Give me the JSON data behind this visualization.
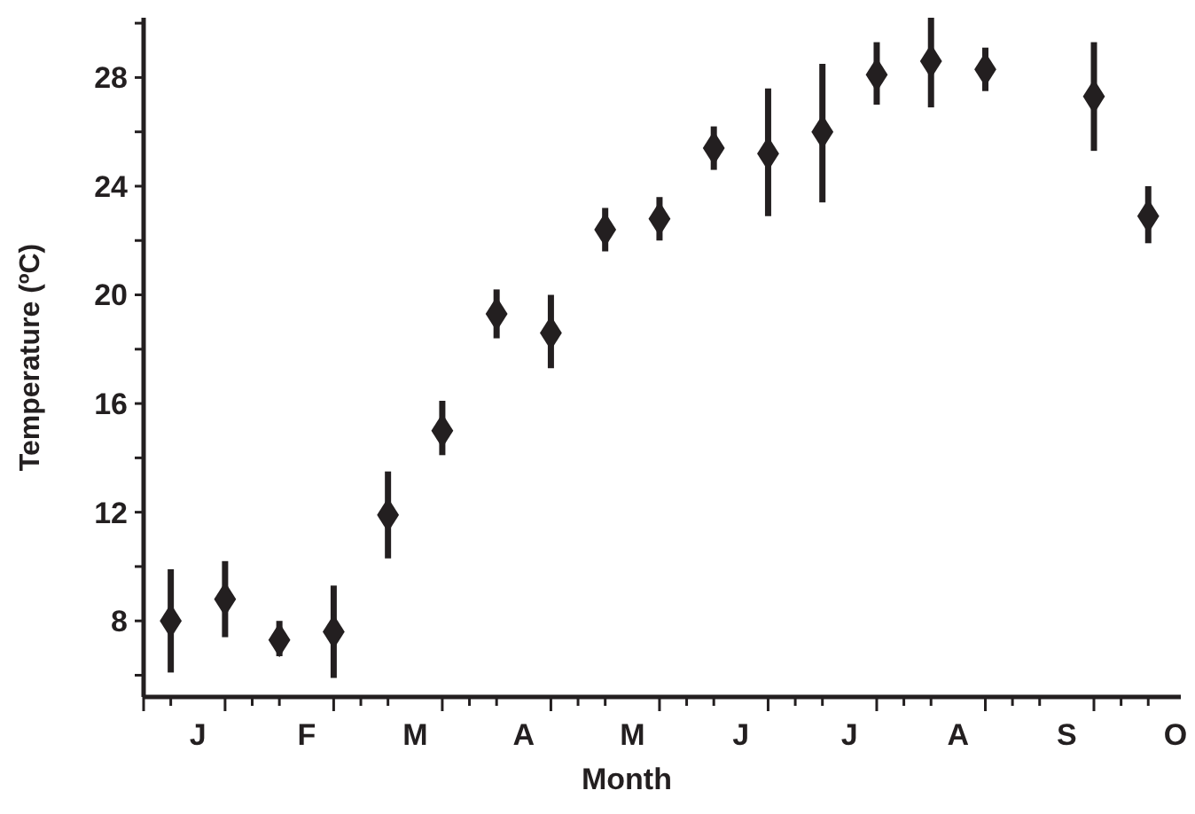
{
  "chart_data": {
    "type": "scatter",
    "xlabel": "Month",
    "ylabel": "Temperature (ºC)",
    "marker": "diamond",
    "categories": [
      null,
      "J",
      null,
      null,
      null,
      "F",
      null,
      null,
      null,
      "M",
      null,
      null,
      null,
      "A",
      null,
      null,
      null,
      "M",
      null,
      null,
      null,
      "J",
      null,
      null,
      null,
      "J",
      null,
      null,
      null,
      "A",
      null,
      null,
      null,
      "S",
      null,
      null,
      null,
      "O"
    ],
    "ylim": [
      5.2,
      30.2
    ],
    "yticks": [
      {
        "value": 6,
        "label": null
      },
      8,
      {
        "value": 10,
        "label": null
      },
      12,
      {
        "value": 14,
        "label": null
      },
      16,
      {
        "value": 18,
        "label": null
      },
      20,
      {
        "value": 22,
        "label": null
      },
      24,
      {
        "value": 26,
        "label": null
      },
      28,
      {
        "value": 30,
        "label": null
      }
    ],
    "series": [
      {
        "color": "#231f20",
        "values": [
          8.0,
          null,
          8.8,
          null,
          7.3,
          null,
          7.6,
          null,
          11.9,
          null,
          15.0,
          null,
          19.3,
          null,
          18.6,
          null,
          22.4,
          null,
          22.8,
          null,
          25.4,
          null,
          25.2,
          null,
          26.0,
          null,
          28.1,
          null,
          28.6,
          null,
          28.3,
          null,
          null,
          null,
          27.3,
          null,
          22.9,
          null
        ],
        "errors": [
          [
            6.1,
            9.9
          ],
          null,
          [
            7.4,
            10.2
          ],
          null,
          [
            6.7,
            8.0
          ],
          null,
          [
            5.9,
            9.3
          ],
          null,
          [
            10.3,
            13.5
          ],
          null,
          [
            14.1,
            16.1
          ],
          null,
          [
            18.4,
            20.2
          ],
          null,
          [
            17.3,
            20.0
          ],
          null,
          [
            21.6,
            23.2
          ],
          null,
          [
            22.0,
            23.6
          ],
          null,
          [
            24.6,
            26.2
          ],
          null,
          [
            22.9,
            27.6
          ],
          null,
          [
            23.4,
            28.5
          ],
          null,
          [
            27.0,
            29.3
          ],
          null,
          [
            26.9,
            30.2
          ],
          null,
          [
            27.5,
            29.1
          ],
          null,
          null,
          null,
          [
            25.3,
            29.3
          ],
          null,
          [
            21.9,
            24.0
          ],
          null
        ]
      }
    ]
  }
}
